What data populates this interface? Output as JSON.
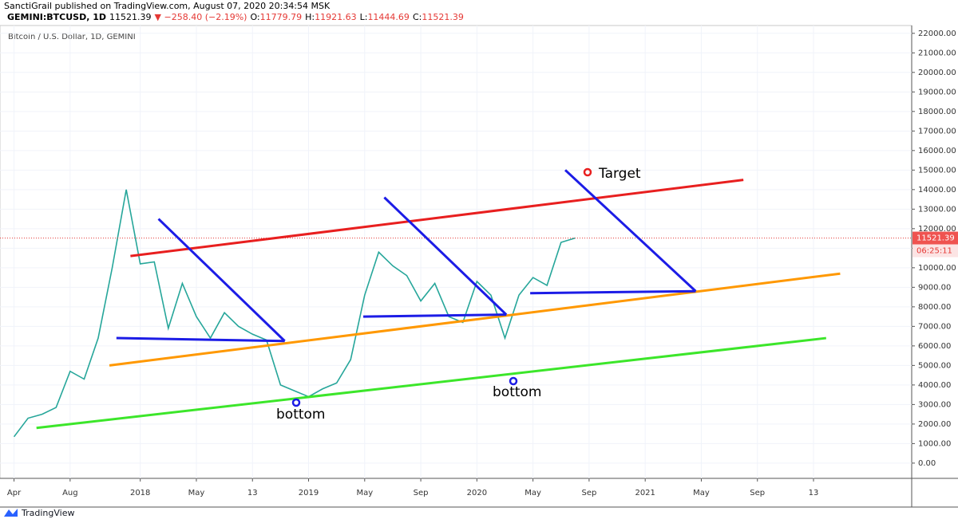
{
  "header": {
    "author_line": "SanctiGrail published on TradingView.com, August 07, 2020 20:34:54 MSK",
    "symbol": "GEMINI:BTCUSD, 1D",
    "last": "11521.39",
    "change": "▼ −258.40 (−2.19%)",
    "ohlc": [
      {
        "label": "O:",
        "value": "11779.79"
      },
      {
        "label": "H:",
        "value": "11921.63"
      },
      {
        "label": "L:",
        "value": "11444.69"
      },
      {
        "label": "C:",
        "value": "11521.39"
      }
    ]
  },
  "chart_data": {
    "type": "line",
    "title": "Bitcoin / U.S. Dollar, 1D, GEMINI",
    "series": [
      {
        "name": "BTCUSD",
        "color": "#26a69a",
        "x": [
          0,
          1,
          2,
          3,
          4,
          5,
          6,
          7,
          8,
          9,
          10,
          11,
          12,
          13,
          14,
          15,
          16,
          17,
          18,
          19,
          20,
          21,
          22,
          23,
          24,
          25,
          26,
          27,
          28,
          29,
          30,
          31,
          32,
          33,
          34,
          35,
          36,
          37,
          38,
          39,
          40
        ],
        "values": [
          1350,
          2300,
          2500,
          2850,
          4700,
          4300,
          6400,
          10000,
          14000,
          10200,
          10300,
          6900,
          9200,
          7500,
          6400,
          7700,
          7000,
          6600,
          6300,
          4000,
          3700,
          3400,
          3800,
          4100,
          5300,
          8600,
          10800,
          10100,
          9600,
          8300,
          9200,
          7500,
          7200,
          9300,
          8600,
          6400,
          8600,
          9500,
          9100,
          11300,
          11521
        ]
      }
    ],
    "last_price": 11521.39,
    "countdown": "06:25:11",
    "drawings": [
      {
        "color": "#e81f1f",
        "x": [
          8.3,
          52.0
        ],
        "values": [
          10600,
          14500
        ]
      },
      {
        "color": "#ff9800",
        "x": [
          6.8,
          58.9
        ],
        "values": [
          5000,
          9700
        ]
      },
      {
        "color": "#3ce62a",
        "x": [
          1.6,
          57.9
        ],
        "values": [
          1800,
          6400
        ]
      },
      {
        "color": "#1c1ce6",
        "x": [
          10.3,
          19.3
        ],
        "values": [
          12500,
          6250
        ]
      },
      {
        "color": "#1c1ce6",
        "x": [
          7.3,
          19.3
        ],
        "values": [
          6400,
          6250
        ]
      },
      {
        "color": "#1c1ce6",
        "x": [
          26.4,
          35.1
        ],
        "values": [
          13600,
          7600
        ]
      },
      {
        "color": "#1c1ce6",
        "x": [
          24.9,
          35.1
        ],
        "values": [
          7500,
          7600
        ]
      },
      {
        "color": "#1c1ce6",
        "x": [
          39.3,
          48.6
        ],
        "values": [
          15000,
          8800
        ]
      },
      {
        "color": "#1c1ce6",
        "x": [
          36.8,
          48.6
        ],
        "values": [
          8700,
          8800
        ]
      }
    ],
    "annotations": [
      "Target",
      "bottom",
      "bottom"
    ],
    "xlim": [
      -1,
      64
    ],
    "ylim": [
      -780,
      22400
    ],
    "xticks": [
      {
        "value": 0,
        "label": "Apr"
      },
      {
        "value": 4,
        "label": "Aug"
      },
      {
        "value": 9,
        "label": "2018"
      },
      {
        "value": 13,
        "label": "May"
      },
      {
        "value": 17,
        "label": "13"
      },
      {
        "value": 21,
        "label": "2019"
      },
      {
        "value": 25,
        "label": "May"
      },
      {
        "value": 29,
        "label": "Sep"
      },
      {
        "value": 33,
        "label": "2020"
      },
      {
        "value": 37,
        "label": "May"
      },
      {
        "value": 41,
        "label": "Sep"
      },
      {
        "value": 45,
        "label": "2021"
      },
      {
        "value": 49,
        "label": "May"
      },
      {
        "value": 53,
        "label": "Sep"
      },
      {
        "value": 57,
        "label": "13"
      }
    ],
    "yticks": [
      {
        "value": 0,
        "label": "0.00"
      },
      {
        "value": 1000,
        "label": "1000.00"
      },
      {
        "value": 2000,
        "label": "2000.00"
      },
      {
        "value": 3000,
        "label": "3000.00"
      },
      {
        "value": 4000,
        "label": "4000.00"
      },
      {
        "value": 5000,
        "label": "5000.00"
      },
      {
        "value": 6000,
        "label": "6000.00"
      },
      {
        "value": 7000,
        "label": "7000.00"
      },
      {
        "value": 8000,
        "label": "8000.00"
      },
      {
        "value": 9000,
        "label": "9000.00"
      },
      {
        "value": 10000,
        "label": "10000.00"
      },
      {
        "value": 11000,
        "label": "11000.00"
      },
      {
        "value": 12000,
        "label": "12000.00"
      },
      {
        "value": 13000,
        "label": "13000.00"
      },
      {
        "value": 14000,
        "label": "14000.00"
      },
      {
        "value": 15000,
        "label": "15000.00"
      },
      {
        "value": 16000,
        "label": "16000.00"
      },
      {
        "value": 17000,
        "label": "17000.00"
      },
      {
        "value": 18000,
        "label": "18000.00"
      },
      {
        "value": 19000,
        "label": "19000.00"
      },
      {
        "value": 20000,
        "label": "20000.00"
      },
      {
        "value": 21000,
        "label": "21000.00"
      },
      {
        "value": 22000,
        "label": "22000.00"
      }
    ],
    "grid": true
  },
  "footer": {
    "brand": "TradingView"
  }
}
